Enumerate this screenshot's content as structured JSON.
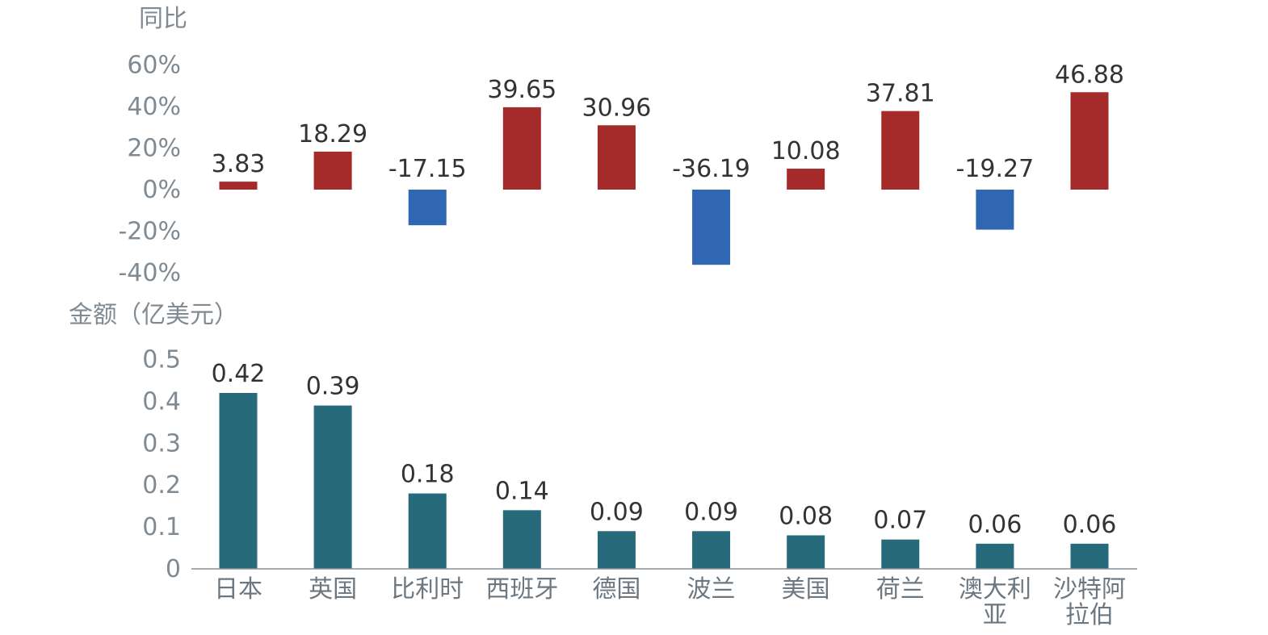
{
  "chart_data": [
    {
      "type": "bar",
      "name": "yoy",
      "ylabel": "同比",
      "ylim": [
        -40,
        60
      ],
      "yticks": [
        60,
        40,
        20,
        0,
        -20,
        -40
      ],
      "ytick_labels": [
        "60%",
        "40%",
        "20%",
        "0%",
        "-20%",
        "-40%"
      ],
      "categories": [
        "日本",
        "英国",
        "比利时",
        "西班牙",
        "德国",
        "波兰",
        "美国",
        "荷兰",
        "澳大利亚",
        "沙特阿拉伯"
      ],
      "values": [
        3.83,
        18.29,
        -17.15,
        39.65,
        30.96,
        -36.19,
        10.08,
        37.81,
        -19.27,
        46.88
      ],
      "value_labels": [
        "3.83",
        "18.29",
        "-17.15",
        "39.65",
        "30.96",
        "-36.19",
        "10.08",
        "37.81",
        "-19.27",
        "46.88"
      ],
      "positive_color": "#a52a2a",
      "negative_color": "#2f67b2"
    },
    {
      "type": "bar",
      "name": "amount",
      "ylabel": "金额（亿美元）",
      "ylim": [
        0,
        0.5
      ],
      "yticks": [
        0.5,
        0.4,
        0.3,
        0.2,
        0.1,
        0
      ],
      "ytick_labels": [
        "0.5",
        "0.4",
        "0.3",
        "0.2",
        "0.1",
        "0"
      ],
      "categories": [
        "日本",
        "英国",
        "比利时",
        "西班牙",
        "德国",
        "波兰",
        "美国",
        "荷兰",
        "澳大利亚",
        "沙特阿拉伯"
      ],
      "category_lines": [
        [
          "日本"
        ],
        [
          "英国"
        ],
        [
          "比利时"
        ],
        [
          "西班牙"
        ],
        [
          "德国"
        ],
        [
          "波兰"
        ],
        [
          "美国"
        ],
        [
          "荷兰"
        ],
        [
          "澳大利",
          "亚"
        ],
        [
          "沙特阿",
          "拉伯"
        ]
      ],
      "values": [
        0.42,
        0.39,
        0.18,
        0.14,
        0.09,
        0.09,
        0.08,
        0.07,
        0.06,
        0.06
      ],
      "value_labels": [
        "0.42",
        "0.39",
        "0.18",
        "0.14",
        "0.09",
        "0.09",
        "0.08",
        "0.07",
        "0.06",
        "0.06"
      ],
      "bar_color": "#266a7c"
    }
  ]
}
